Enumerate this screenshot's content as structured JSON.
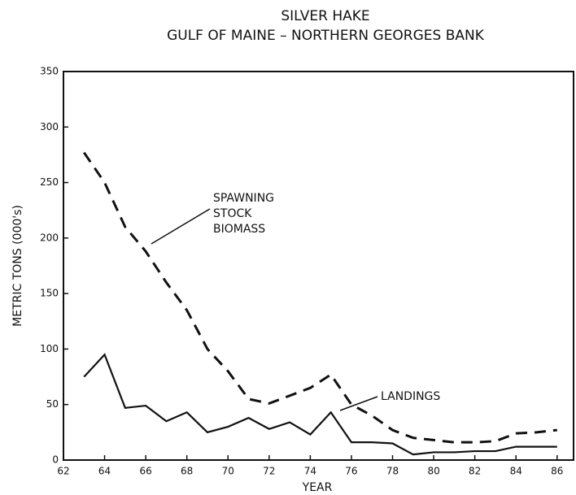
{
  "chart_data": {
    "type": "line",
    "title": [
      "SILVER HAKE",
      "GULF OF MAINE – NORTHERN GEORGES BANK"
    ],
    "x_label": "YEAR",
    "y_label": "METRIC TONS (000's)",
    "x": [
      63,
      64,
      65,
      66,
      67,
      68,
      69,
      70,
      71,
      72,
      73,
      74,
      75,
      76,
      77,
      78,
      79,
      80,
      81,
      82,
      83,
      84,
      85,
      86
    ],
    "series": [
      {
        "color": "#111111",
        "dashed": true,
        "values": [
          277,
          250,
          210,
          188,
          160,
          135,
          100,
          80,
          55,
          51,
          58,
          65,
          77,
          50,
          40,
          27,
          20,
          18,
          16,
          16,
          17,
          24,
          25,
          27
        ]
      },
      {
        "color": "#111111",
        "dashed": false,
        "values": [
          75,
          95,
          47,
          49,
          35,
          43,
          25,
          30,
          38,
          28,
          34,
          23,
          43,
          16,
          16,
          15,
          5,
          7,
          7,
          8,
          8,
          12,
          12,
          12
        ]
      }
    ],
    "annotations": [
      {
        "lines": [
          "SPAWNING",
          "STOCK",
          "BIOMASS"
        ]
      },
      {
        "lines": [
          "LANDINGS"
        ]
      }
    ],
    "xlim": [
      62,
      86.8
    ],
    "xticks": [
      62,
      64,
      66,
      68,
      70,
      72,
      74,
      76,
      78,
      80,
      82,
      84,
      86
    ],
    "ylim": [
      0,
      350
    ],
    "yticks": [
      0,
      50,
      100,
      150,
      200,
      250,
      300,
      350
    ]
  }
}
